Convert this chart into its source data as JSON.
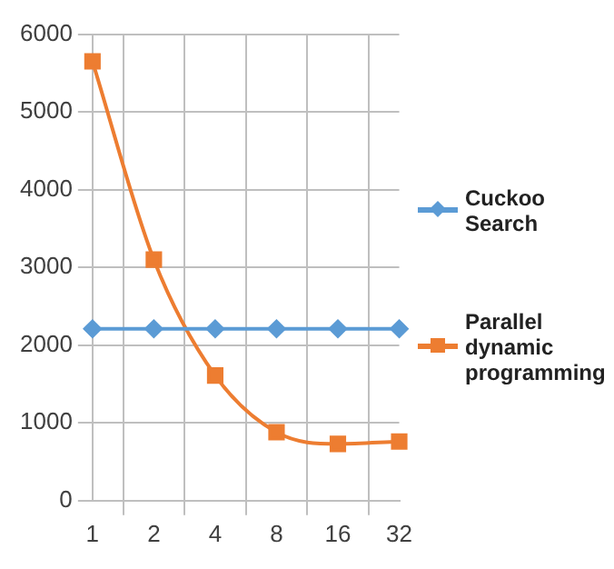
{
  "chart_data": {
    "type": "line",
    "categories": [
      "1",
      "2",
      "4",
      "8",
      "16",
      "32"
    ],
    "series": [
      {
        "name": "Cuckoo Search",
        "color": "#5b9bd5",
        "marker": "diamond",
        "values": [
          2210,
          2210,
          2210,
          2210,
          2210,
          2210
        ]
      },
      {
        "name": "Parallel dynamic programming",
        "color": "#ed7d31",
        "marker": "square",
        "values": [
          5650,
          3100,
          1610,
          880,
          730,
          760
        ]
      }
    ],
    "ylim": [
      0,
      6000
    ],
    "yticks": [
      0,
      1000,
      2000,
      3000,
      4000,
      5000,
      6000
    ],
    "grid": true,
    "legend": "right"
  }
}
